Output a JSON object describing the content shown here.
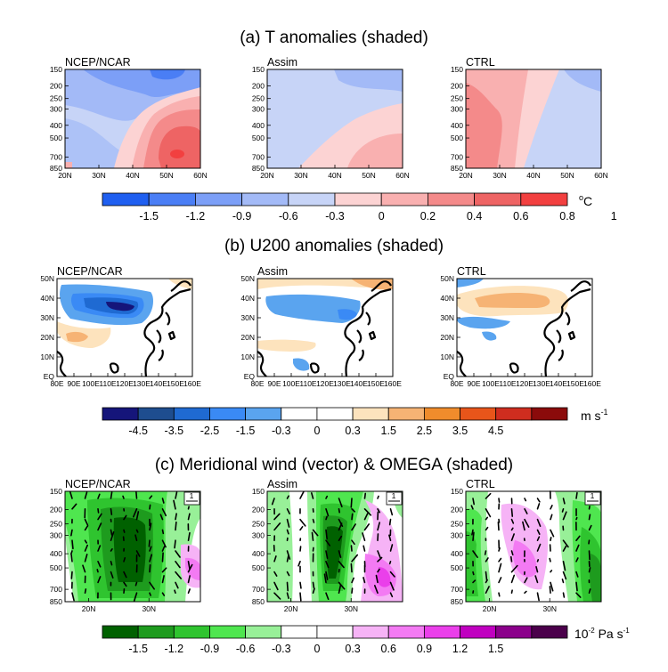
{
  "colors": {
    "temp": [
      "#1f5ff0",
      "#4a7ef5",
      "#7c9ff7",
      "#a3baf7",
      "#c7d4f7",
      "#fcd3d3",
      "#f9b0b0",
      "#f48a8a",
      "#ee6464",
      "#f24040"
    ],
    "wind": [
      "#15157a",
      "#1e4d8f",
      "#1f6ad2",
      "#3a8af5",
      "#5aa4ef",
      "#ffffff",
      "#ffffff",
      "#fde3bd",
      "#f6b374",
      "#f08c2c",
      "#e8551a",
      "#cf2d1f",
      "#8b0b0b"
    ],
    "omega": [
      "#006100",
      "#1e9b1e",
      "#2fc42f",
      "#4fe64f",
      "#98f098",
      "#ffffff",
      "#ffffff",
      "#f6b3f6",
      "#f37af3",
      "#ea3fea",
      "#c000c0",
      "#8b008b",
      "#4b004b"
    ]
  },
  "chart_data": [
    {
      "type": "heatmap",
      "title": "(a) T anomalies (shaded)",
      "panels": [
        "NCEP/NCAR",
        "Assim",
        "CTRL"
      ],
      "x_ticks": [
        "20N",
        "30N",
        "40N",
        "50N",
        "60N"
      ],
      "y_ticks": [
        "150",
        "200",
        "250",
        "300",
        "400",
        "500",
        "700",
        "850"
      ],
      "colorbar_labels": [
        "-1.5",
        "-1.2",
        "-0.9",
        "-0.6",
        "-0.3",
        "0",
        "0.2",
        "0.4",
        "0.6",
        "0.8",
        "1"
      ],
      "units": "oC",
      "levels": [
        -1.5,
        -1.2,
        -0.9,
        -0.6,
        -0.3,
        0,
        0.2,
        0.4,
        0.6,
        0.8,
        1.0
      ]
    },
    {
      "type": "heatmap",
      "title": "(b) U200 anomalies (shaded)",
      "panels": [
        "NCEP/NCAR",
        "Assim",
        "CTRL"
      ],
      "x_ticks": [
        "80E",
        "90E",
        "100E",
        "110E",
        "120E",
        "130E",
        "140E",
        "150E",
        "160E"
      ],
      "y_ticks": [
        "50N",
        "40N",
        "30N",
        "20N",
        "10N",
        "EQ"
      ],
      "colorbar_labels": [
        "-4.5",
        "-3.5",
        "-2.5",
        "-1.5",
        "-0.3",
        "0",
        "0.3",
        "1.5",
        "2.5",
        "3.5",
        "4.5"
      ],
      "units": "m s-1",
      "levels": [
        -4.5,
        -3.5,
        -2.5,
        -1.5,
        -0.3,
        0,
        0.3,
        1.5,
        2.5,
        3.5,
        4.5
      ]
    },
    {
      "type": "heatmap",
      "title": "(c) Meridional wind (vector) & OMEGA (shaded)",
      "panels": [
        "NCEP/NCAR",
        "Assim",
        "CTRL"
      ],
      "x_ticks": [
        "20N",
        "30N"
      ],
      "y_ticks": [
        "150",
        "200",
        "250",
        "300",
        "400",
        "500",
        "700",
        "850"
      ],
      "colorbar_labels": [
        "-1.5",
        "-1.2",
        "-0.9",
        "-0.6",
        "-0.3",
        "0",
        "0.3",
        "0.6",
        "0.9",
        "1.2",
        "1.5"
      ],
      "units": "10-2 Pa s-1",
      "reference_vector": "1",
      "levels": [
        -1.5,
        -1.2,
        -0.9,
        -0.6,
        -0.3,
        0,
        0.3,
        0.6,
        0.9,
        1.2,
        1.5
      ]
    }
  ],
  "labels": {
    "a": {
      "title": "(a) T anomalies (shaded)",
      "panels": [
        "NCEP/NCAR",
        "Assim",
        "CTRL"
      ],
      "xt": [
        "20N",
        "30N",
        "40N",
        "50N",
        "60N"
      ],
      "yt": [
        "150",
        "200",
        "250",
        "300",
        "400",
        "500",
        "700",
        "850"
      ],
      "cb": [
        "-1.5",
        "-1.2",
        "-0.9",
        "-0.6",
        "-0.3",
        "0",
        "0.2",
        "0.4",
        "0.6",
        "0.8",
        "1"
      ],
      "unit_main": "C",
      "unit_sup": "o"
    },
    "b": {
      "title": "(b) U200 anomalies (shaded)",
      "panels": [
        "NCEP/NCAR",
        "Assim",
        "CTRL"
      ],
      "xt": [
        "80E",
        "90E",
        "100E",
        "110E",
        "120E",
        "130E",
        "140E",
        "150E",
        "160E"
      ],
      "yt": [
        "50N",
        "40N",
        "30N",
        "20N",
        "10N",
        "EQ"
      ],
      "cb": [
        "-4.5",
        "-3.5",
        "-2.5",
        "-1.5",
        "-0.3",
        "0",
        "0.3",
        "1.5",
        "2.5",
        "3.5",
        "4.5"
      ],
      "unit_main": "m s",
      "unit_sup": "-1"
    },
    "c": {
      "title": "(c) Meridional wind (vector) & OMEGA (shaded)",
      "panels": [
        "NCEP/NCAR",
        "Assim",
        "CTRL"
      ],
      "xt": [
        "20N",
        "30N"
      ],
      "yt": [
        "150",
        "200",
        "250",
        "300",
        "400",
        "500",
        "700",
        "850"
      ],
      "cb": [
        "-1.5",
        "-1.2",
        "-0.9",
        "-0.6",
        "-0.3",
        "0",
        "0.3",
        "0.6",
        "0.9",
        "1.2",
        "1.5"
      ],
      "unit_pre": "10",
      "unit_sup1": "-2",
      "unit_mid": " Pa s",
      "unit_sup2": "-1",
      "ref": "1"
    }
  }
}
